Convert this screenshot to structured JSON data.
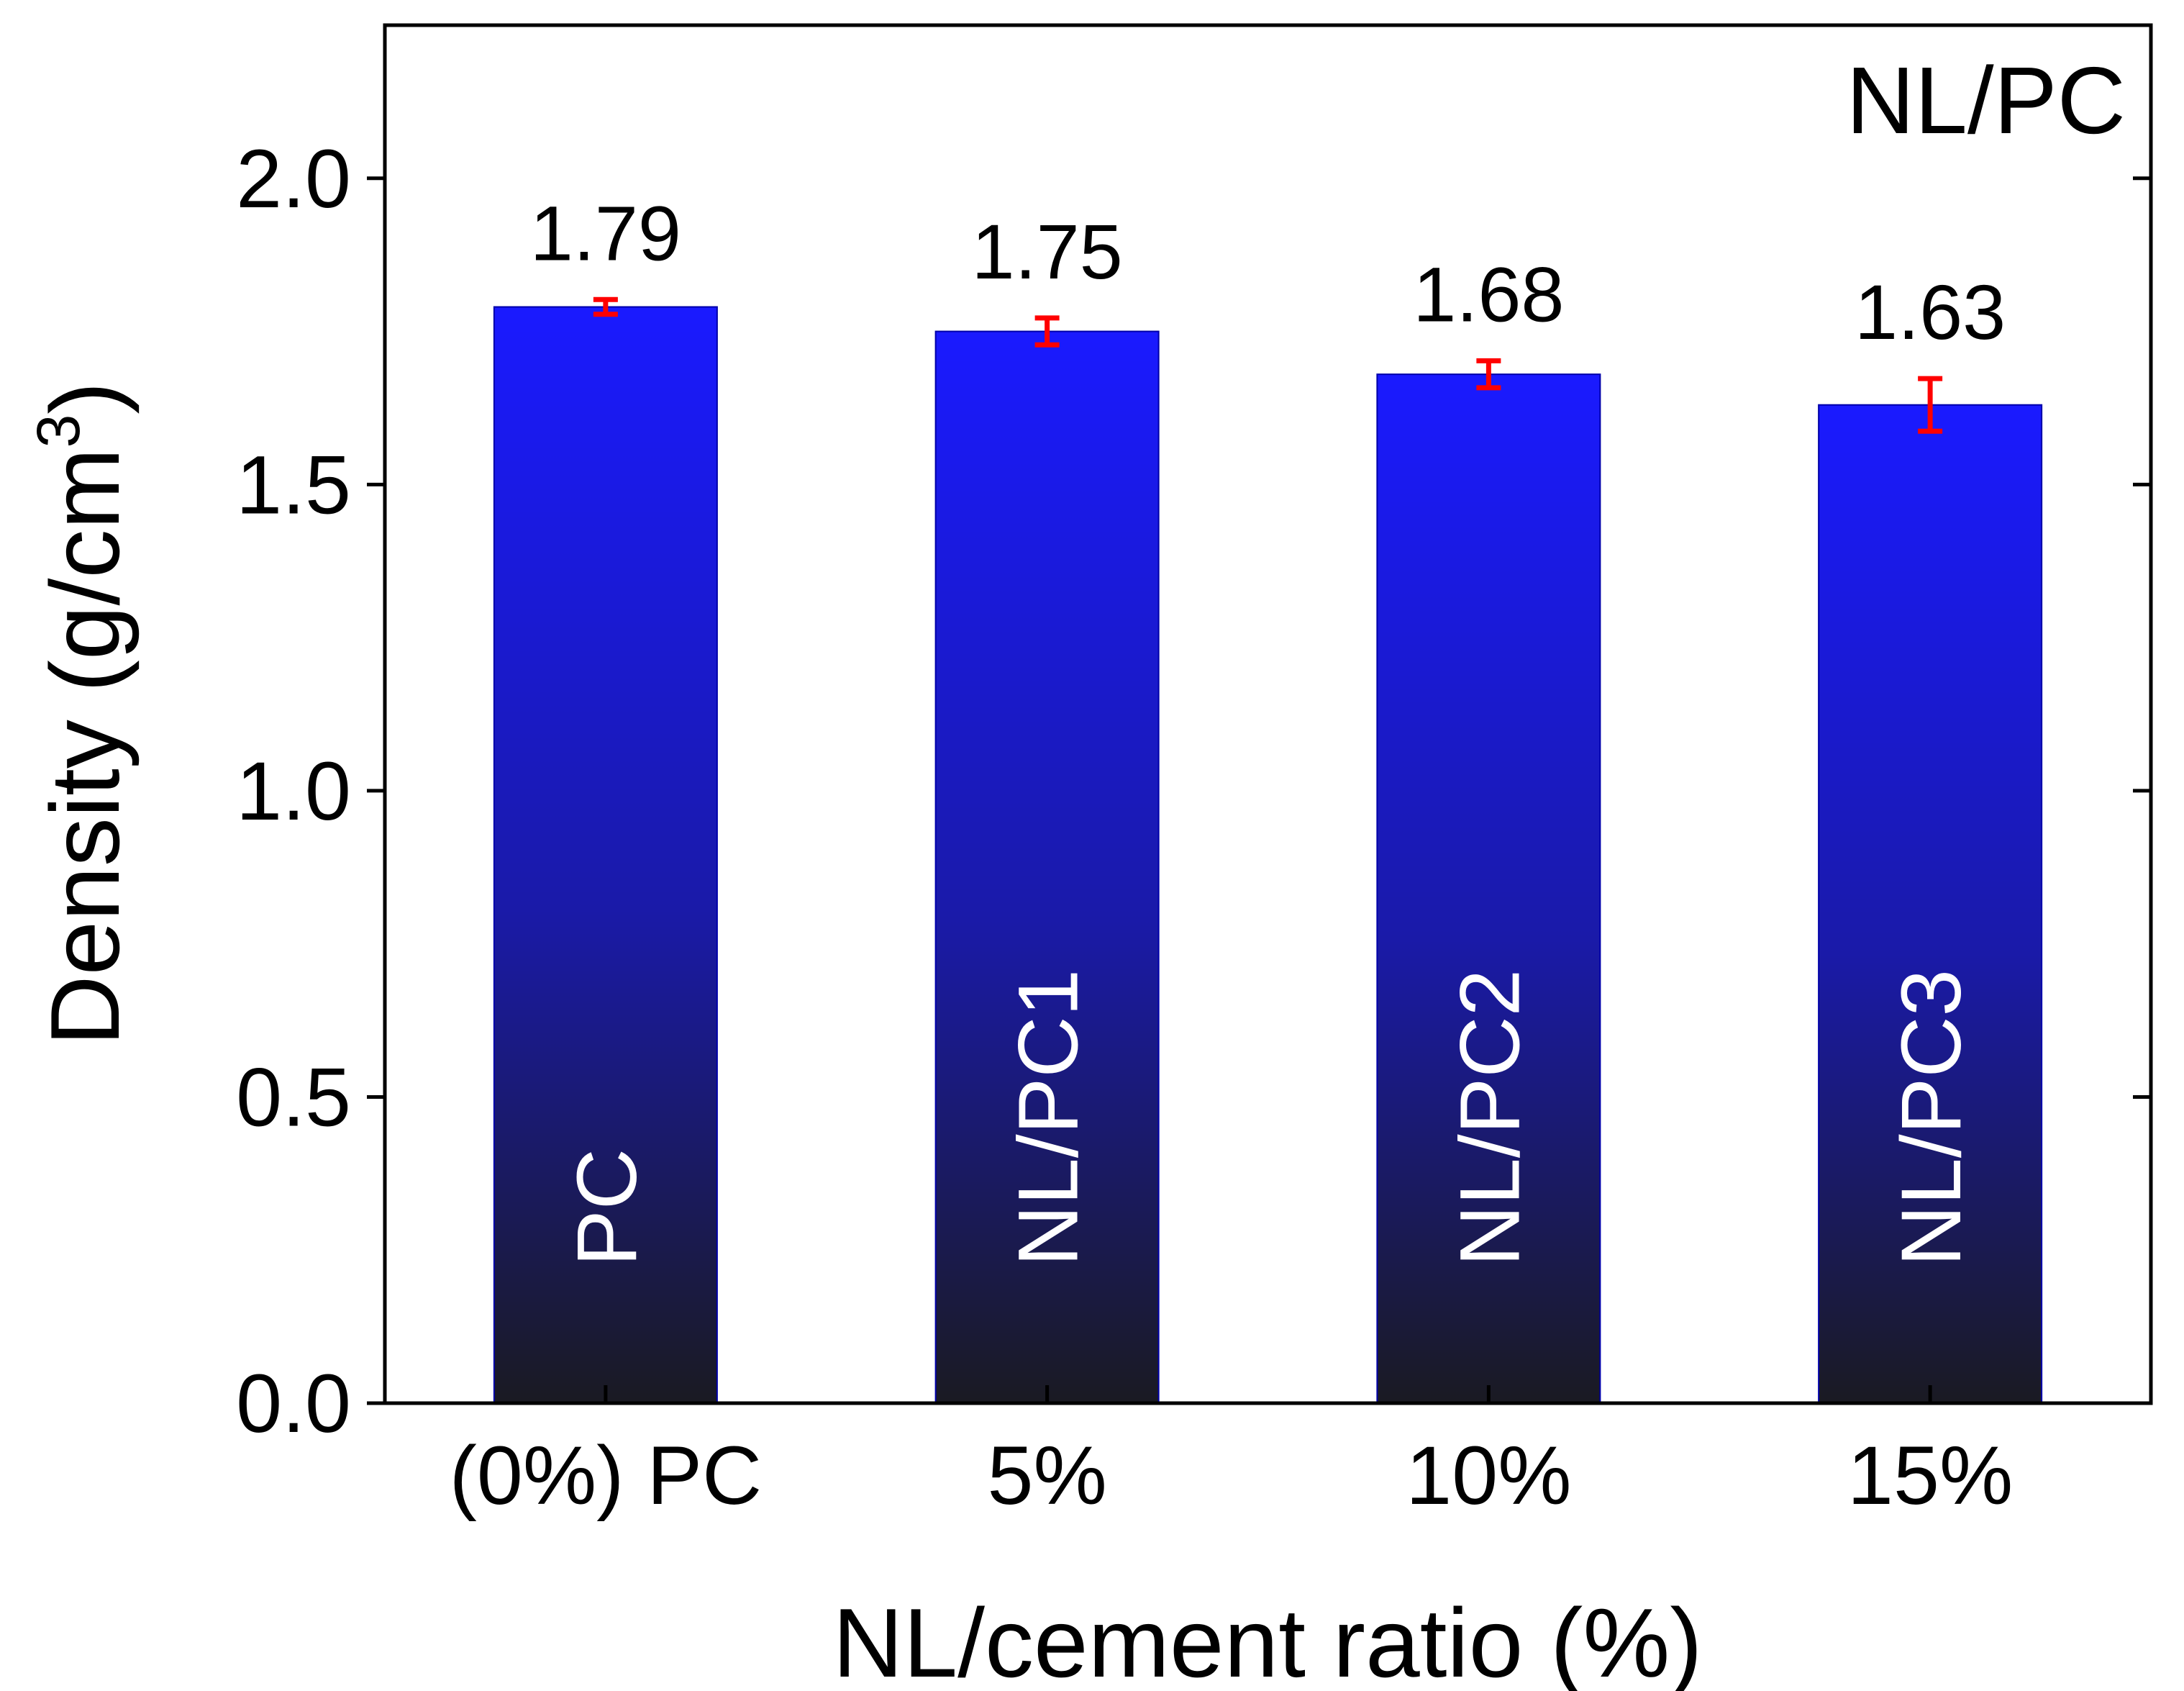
{
  "chart_data": {
    "type": "bar",
    "title": "NL/PC",
    "xlabel": "NL/cement ratio (%)",
    "ylabel_main": "Density (g/cm",
    "ylabel_sup": "3",
    "ylabel_close": ")",
    "ylim": [
      0,
      2.25
    ],
    "yticks": [
      0.0,
      0.5,
      1.0,
      1.5,
      2.0
    ],
    "ytick_labels": [
      "0.0",
      "0.5",
      "1.0",
      "1.5",
      "2.0"
    ],
    "categories": [
      "(0%) PC",
      "5%",
      "10%",
      "15%"
    ],
    "values": [
      1.79,
      1.75,
      1.68,
      1.63
    ],
    "value_labels": [
      "1.79",
      "1.75",
      "1.68",
      "1.63"
    ],
    "errors": [
      0.012,
      0.022,
      0.022,
      0.043
    ],
    "bar_labels": [
      "PC",
      "NL/PC1",
      "NL/PC2",
      "NL/PC3"
    ],
    "colors": {
      "bar_top": "#1a1aff",
      "bar_mid": "#1a1aa8",
      "bar_bottom": "#1a1a22",
      "error_bar": "#ff0000",
      "axis": "#000000",
      "bar_label_text": "#ffffff"
    }
  }
}
